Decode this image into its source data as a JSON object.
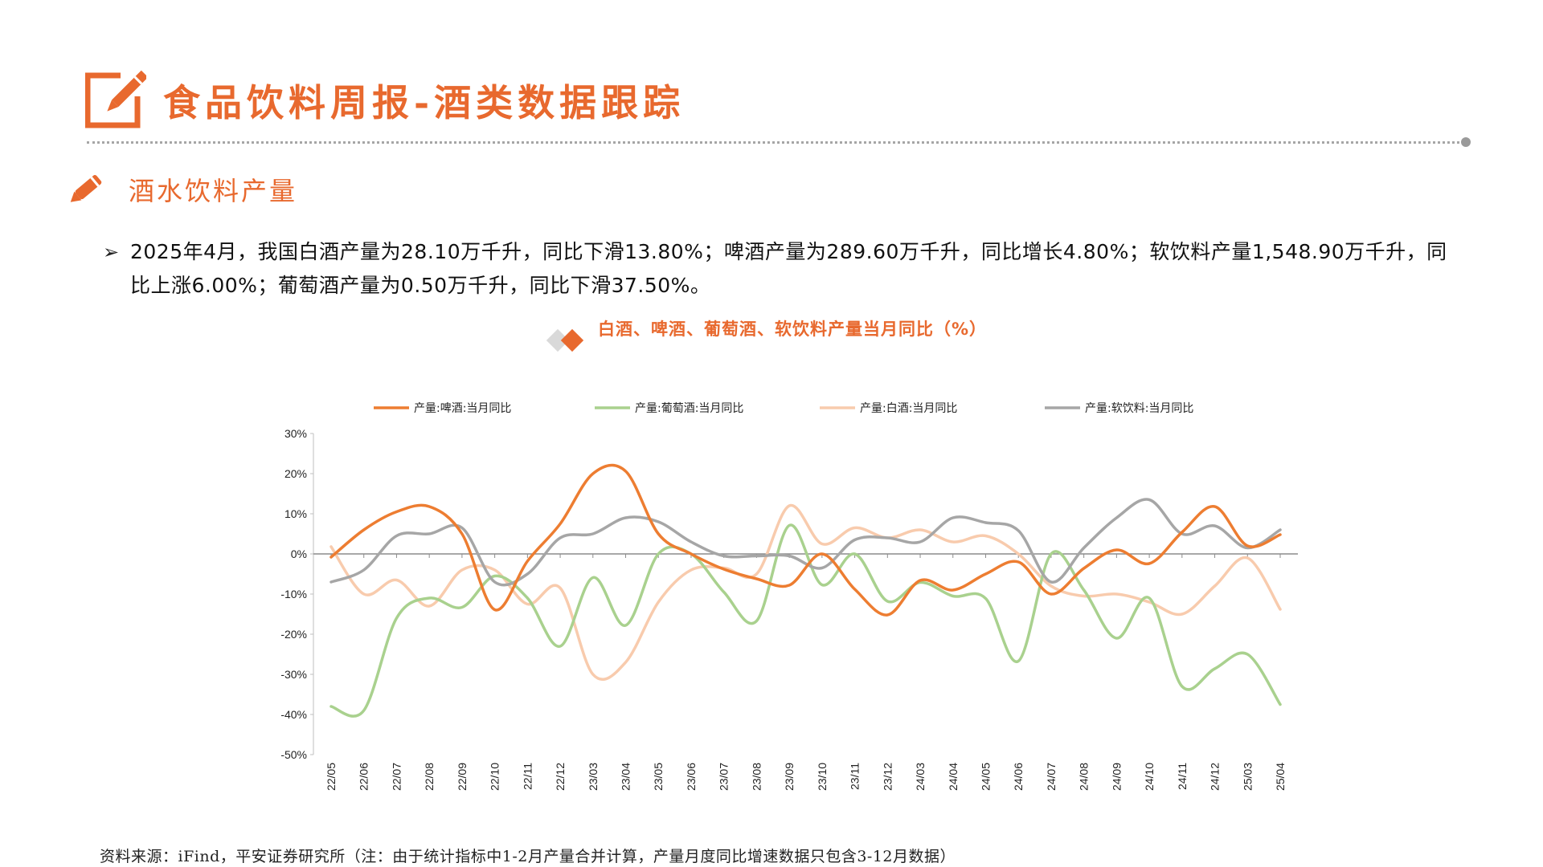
{
  "header": {
    "title": "食品饮料周报-酒类数据跟踪"
  },
  "section": {
    "title": "酒水饮料产量"
  },
  "summary": {
    "bullet": "➢",
    "text": "2025年4月，我国白酒产量为28.10万千升，同比下滑13.80%；啤酒产量为289.60万千升，同比增长4.80%；软饮料产量1,548.90万千升，同比上涨6.00%；葡萄酒产量为0.50万千升，同比下滑37.50%。"
  },
  "chart_title": "白酒、啤酒、葡萄酒、软饮料产量当月同比（%）",
  "footer": {
    "source": "资料来源：iFind，平安证券研究所（注：由于统计指标中1-2月产量合并计算，产量月度同比增速数据只包含3-12月数据）"
  },
  "colors": {
    "accent": "#e8692e",
    "beer": "#ed7d31",
    "wine": "#a9d18e",
    "baijiu": "#f8cbad",
    "soft": "#a6a6a6"
  },
  "chart_data": {
    "type": "line",
    "title": "白酒、啤酒、葡萄酒、软饮料产量当月同比（%）",
    "xlabel": "",
    "ylabel": "",
    "ylim": [
      -50,
      30
    ],
    "yticks": [
      30,
      20,
      10,
      0,
      -10,
      -20,
      -30,
      -40,
      -50
    ],
    "ytick_labels": [
      "30%",
      "20%",
      "10%",
      "0%",
      "-10%",
      "-20%",
      "-30%",
      "-40%",
      "-50%"
    ],
    "legend_position": "top",
    "grid": false,
    "categories": [
      "22/05",
      "22/06",
      "22/07",
      "22/08",
      "22/09",
      "22/10",
      "22/11",
      "22/12",
      "23/03",
      "23/04",
      "23/05",
      "23/06",
      "23/07",
      "23/08",
      "23/09",
      "23/10",
      "23/11",
      "23/12",
      "24/03",
      "24/04",
      "24/05",
      "24/06",
      "24/07",
      "24/08",
      "24/09",
      "24/10",
      "24/11",
      "24/12",
      "25/03",
      "25/04"
    ],
    "series": [
      {
        "name": "产量:啤酒:当月同比",
        "color": "#ed7d31",
        "values": [
          -0.8,
          6.0,
          10.5,
          11.8,
          5.0,
          -13.9,
          -1.8,
          7.5,
          20.0,
          20.6,
          5.0,
          0.0,
          -3.8,
          -6.2,
          -7.8,
          0.0,
          -8.8,
          -15.2,
          -6.6,
          -9.0,
          -5.0,
          -2.0,
          -10.0,
          -3.6,
          1.0,
          -2.4,
          5.4,
          11.8,
          2.0,
          4.8
        ]
      },
      {
        "name": "产量:葡萄酒:当月同比",
        "color": "#a9d18e",
        "values": [
          -38.0,
          -39.0,
          -16.0,
          -11.0,
          -13.3,
          -5.5,
          -11.0,
          -23.0,
          -5.9,
          -17.8,
          0.0,
          0.0,
          -9.5,
          -16.7,
          7.1,
          -7.7,
          0.0,
          -11.8,
          -7.1,
          -10.5,
          -11.1,
          -26.7,
          0.0,
          -9.0,
          -21.0,
          -11.0,
          -33.0,
          -28.6,
          -25.0,
          -37.5
        ]
      },
      {
        "name": "产量:白酒:当月同比",
        "color": "#f8cbad",
        "values": [
          1.8,
          -10.0,
          -6.5,
          -13.0,
          -4.0,
          -4.0,
          -12.5,
          -8.5,
          -30.0,
          -27.0,
          -12.0,
          -4.0,
          -3.5,
          -5.0,
          12.0,
          2.5,
          6.5,
          4.0,
          6.0,
          3.0,
          4.5,
          0.0,
          -8.0,
          -10.5,
          -10.0,
          -12.0,
          -15.0,
          -8.0,
          -1.0,
          -13.8
        ]
      },
      {
        "name": "产量:软饮料:当月同比",
        "color": "#a6a6a6",
        "values": [
          -7.0,
          -4.0,
          4.5,
          5.0,
          6.5,
          -7.0,
          -5.0,
          4.0,
          5.0,
          9.0,
          8.0,
          3.0,
          -0.5,
          -0.5,
          -0.5,
          -3.5,
          3.5,
          4.0,
          3.0,
          9.0,
          7.8,
          5.8,
          -7.0,
          1.5,
          9.0,
          13.5,
          5.0,
          7.0,
          1.5,
          6.0
        ]
      }
    ]
  }
}
